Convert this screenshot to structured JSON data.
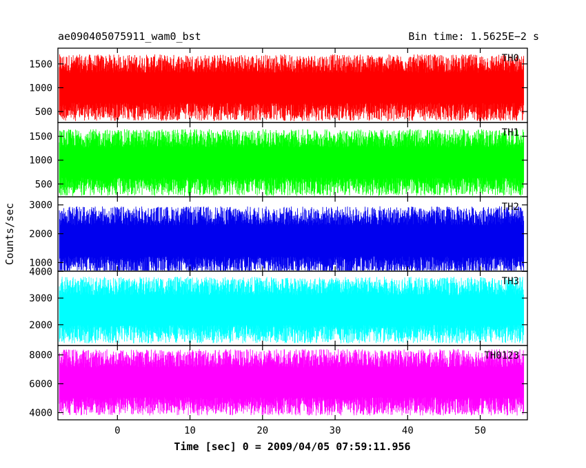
{
  "header": {
    "title": "ae090405075911_wam0_bst",
    "bin_time": "Bin time: 1.5625E−2 s"
  },
  "chart_data": {
    "type": "line",
    "title": "ae090405075911_wam0_bst",
    "xlabel": "Time [sec] 0 = 2009/04/05 07:59:11.956",
    "ylabel": "Counts/sec",
    "xlim": [
      -8.2,
      56.5
    ],
    "xticks": [
      0,
      10,
      20,
      30,
      40,
      50
    ],
    "xtick_labels": [
      "0",
      "10",
      "20",
      "30",
      "40",
      "50"
    ],
    "data_x_range": [
      -8,
      56
    ],
    "panels": [
      {
        "name": "TH0",
        "color": "#ff0000",
        "ylim": [
          270,
          1830
        ],
        "yticks": [
          500,
          1000,
          1500
        ],
        "ytick_labels": [
          "500",
          "1000",
          "1500"
        ],
        "mean": 1000,
        "spread": 700
      },
      {
        "name": "TH1",
        "color": "#00ff00",
        "ylim": [
          230,
          1790
        ],
        "yticks": [
          500,
          1000,
          1500
        ],
        "ytick_labels": [
          "500",
          "1000",
          "1500"
        ],
        "mean": 950,
        "spread": 700
      },
      {
        "name": "TH2",
        "color": "#0000ee",
        "ylim": [
          700,
          3280
        ],
        "yticks": [
          1000,
          2000,
          3000
        ],
        "ytick_labels": [
          "1000",
          "2000",
          "3000"
        ],
        "mean": 1750,
        "spread": 1200
      },
      {
        "name": "TH3",
        "color": "#00ffff",
        "ylim": [
          1220,
          4010
        ],
        "yticks": [
          2000,
          3000,
          4000
        ],
        "ytick_labels": [
          "2000",
          "3000",
          "4000"
        ],
        "mean": 2550,
        "spread": 1250
      },
      {
        "name": "TH0123",
        "color": "#ff00ff",
        "ylim": [
          3500,
          8650
        ],
        "yticks": [
          4000,
          6000,
          8000
        ],
        "ytick_labels": [
          "4000",
          "6000",
          "8000"
        ],
        "mean": 6100,
        "spread": 2300
      }
    ]
  }
}
